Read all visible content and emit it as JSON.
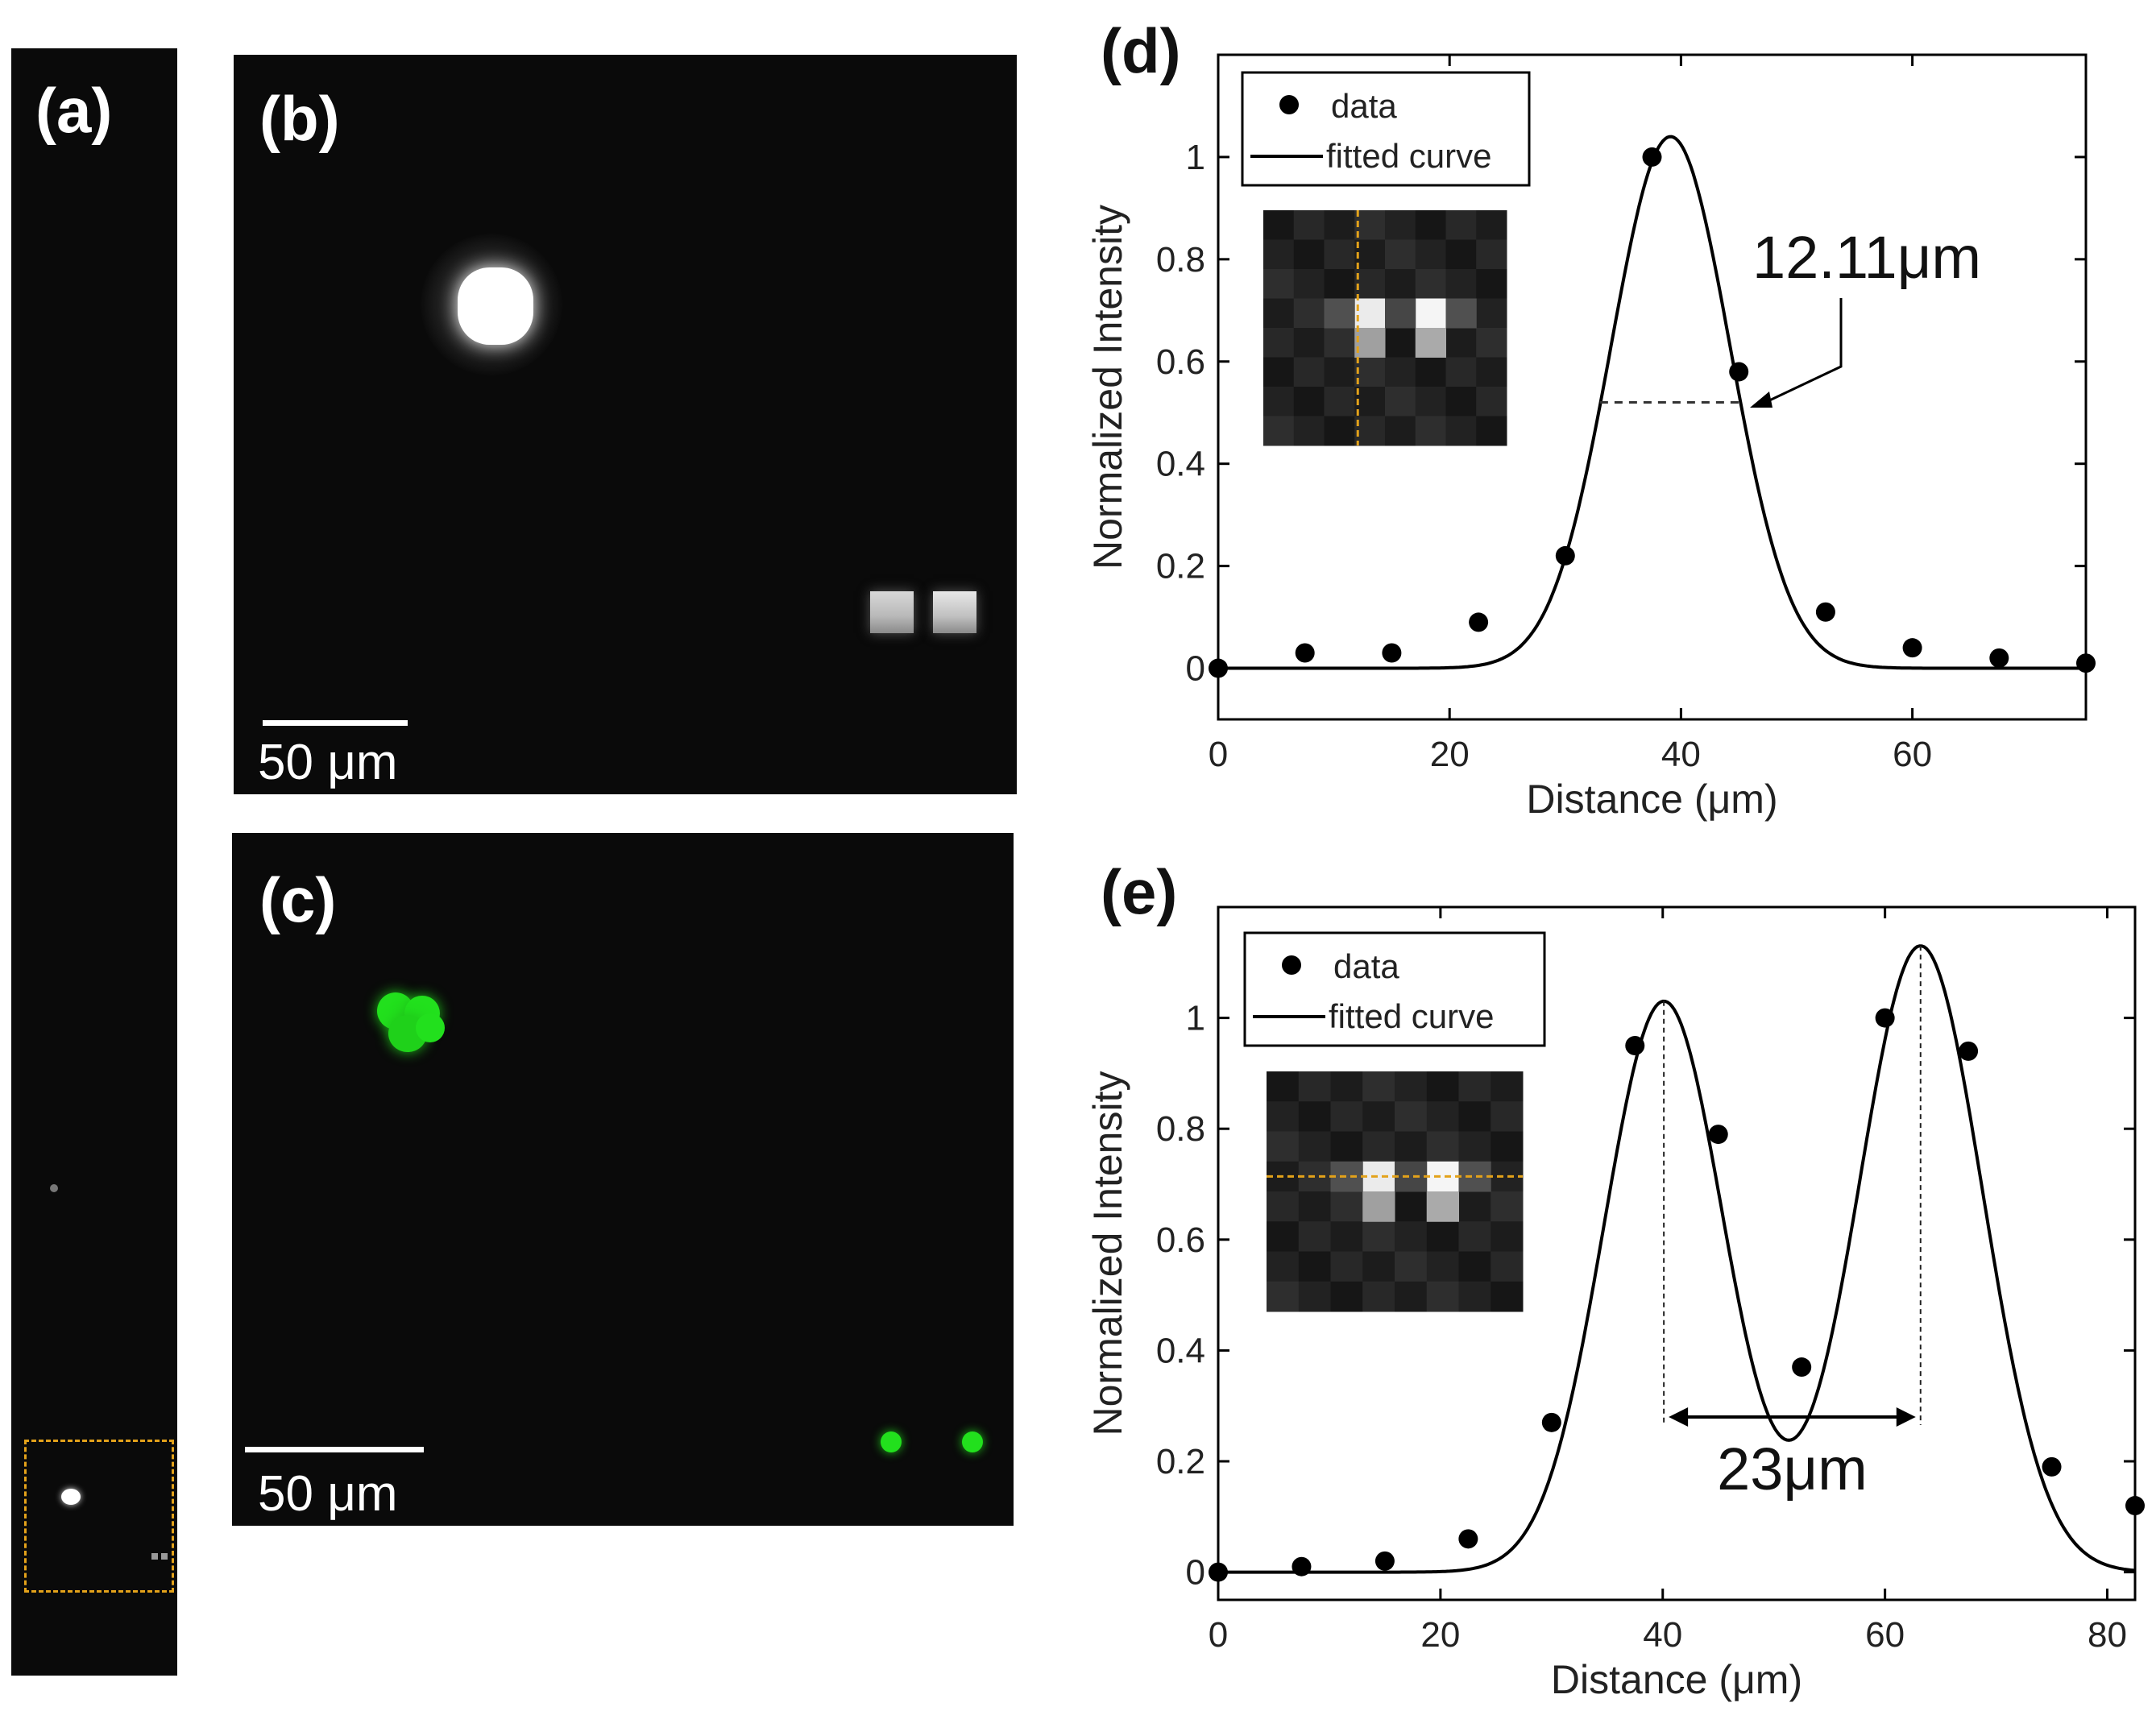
{
  "panels": {
    "a": {
      "label": "(a)"
    },
    "b": {
      "label": "(b)",
      "scale_text": "50 μm"
    },
    "c": {
      "label": "(c)",
      "scale_text": "50 μm"
    },
    "d": {
      "label": "(d)"
    },
    "e": {
      "label": "(e)"
    }
  },
  "colors": {
    "highlight_box": "#e3a21a",
    "fluorescence": "#22e01d",
    "curve": "#000000",
    "marker": "#000000"
  },
  "chart_data": [
    {
      "type": "scatter",
      "title": "",
      "xlabel": "Distance (μm)",
      "ylabel": "Normalized Intensity",
      "xlim": [
        0,
        75
      ],
      "ylim": [
        -0.1,
        1.2
      ],
      "xticks": [
        0,
        20,
        40,
        60
      ],
      "yticks": [
        0,
        0.2,
        0.4,
        0.6,
        0.8,
        1
      ],
      "ytick_labels": [
        "0",
        "0.2",
        "0.4",
        "0.6",
        "0.8",
        "1"
      ],
      "legend": {
        "position": "top-left",
        "entries": [
          "data",
          "fitted curve"
        ]
      },
      "series": [
        {
          "name": "data",
          "x": [
            0,
            7.5,
            15,
            22.5,
            30,
            37.5,
            45,
            52.5,
            60,
            67.5,
            75
          ],
          "y": [
            0,
            0.03,
            0.03,
            0.09,
            0.22,
            1.0,
            0.58,
            0.11,
            0.04,
            0.02,
            0.01
          ]
        },
        {
          "name": "fitted curve",
          "model": "gaussian",
          "params": [
            {
              "amplitude": 1.04,
              "center": 39.1,
              "sigma": 5.14
            }
          ]
        }
      ],
      "annotation": {
        "text": "12.11μm",
        "fwhm_y": 0.52,
        "fwhm_x": [
          33.0,
          45.1
        ]
      },
      "inset": {
        "line": "vertical"
      }
    },
    {
      "type": "scatter",
      "title": "",
      "xlabel": "Distance (μm)",
      "ylabel": "Normalized Intensity",
      "xlim": [
        0,
        82.5
      ],
      "ylim": [
        -0.05,
        1.2
      ],
      "xticks": [
        0,
        20,
        40,
        60,
        80
      ],
      "yticks": [
        0,
        0.2,
        0.4,
        0.6,
        0.8,
        1
      ],
      "ytick_labels": [
        "0",
        "0.2",
        "0.4",
        "0.6",
        "0.8",
        "1"
      ],
      "legend": {
        "position": "top-left",
        "entries": [
          "data",
          "fitted curve"
        ]
      },
      "series": [
        {
          "name": "data",
          "x": [
            0,
            7.5,
            15,
            22.5,
            30,
            37.5,
            45,
            52.5,
            60,
            67.5,
            75,
            82.5
          ],
          "y": [
            0,
            0.01,
            0.02,
            0.06,
            0.27,
            0.95,
            0.79,
            0.37,
            1.0,
            0.94,
            0.19,
            0.12
          ]
        },
        {
          "name": "fitted curve",
          "model": "double-gaussian",
          "params": [
            {
              "amplitude": 1.03,
              "center": 40.1,
              "sigma": 5.4
            },
            {
              "amplitude": 1.13,
              "center": 63.2,
              "sigma": 5.6
            }
          ]
        }
      ],
      "annotation": {
        "text": "23μm",
        "peak_x": [
          40.1,
          63.2
        ],
        "arrow_y": 0.28
      },
      "inset": {
        "line": "horizontal"
      }
    }
  ]
}
